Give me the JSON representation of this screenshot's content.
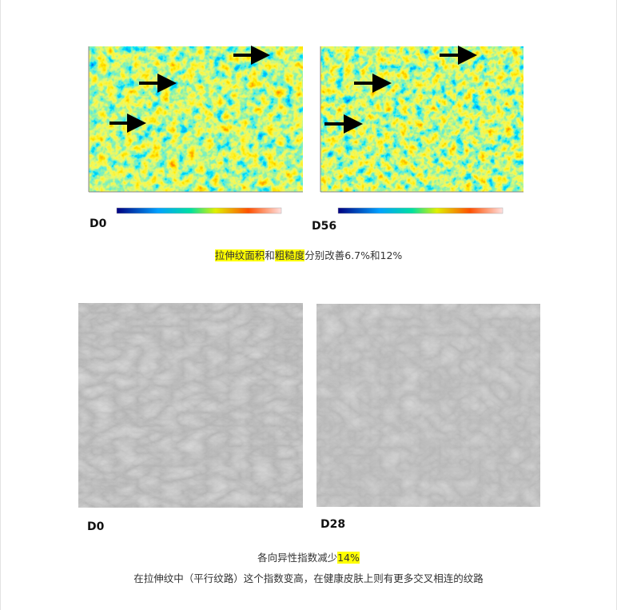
{
  "figure1": {
    "left_label": "D0",
    "right_label": "D56",
    "caption": [
      {
        "text": "拉伸纹面积",
        "highlight": true
      },
      {
        "text": "和",
        "highlight": false
      },
      {
        "text": "粗糙度",
        "highlight": true
      },
      {
        "text": "分别改善6.7%和12%",
        "highlight": false
      }
    ]
  },
  "figure2": {
    "left_label": "D0",
    "right_label": "D28",
    "caption": [
      {
        "text": "各向异性指数减少",
        "highlight": false
      },
      {
        "text": "14%",
        "highlight": true
      }
    ],
    "note": "在拉伸纹中（平行纹路）这个指数变高，在健康皮肤上则有更多交叉相连的纹路"
  }
}
